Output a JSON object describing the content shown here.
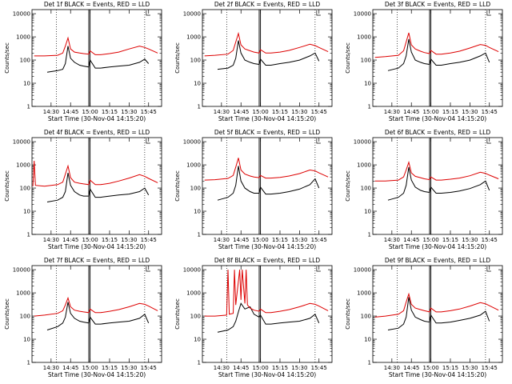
{
  "common": {
    "ylabel": "Counts/sec",
    "xlabel": "Start Time (30-Nov-04 14:15:20)",
    "xticks": [
      "14:30",
      "14:45",
      "15:00",
      "15:15",
      "15:30",
      "15:45"
    ],
    "yticks": [
      "1",
      "10",
      "100",
      "1000",
      "10000"
    ],
    "colors": {
      "events": "#000000",
      "lld": "#dd0000",
      "axes": "#000000"
    }
  },
  "chart_data": [
    {
      "type": "line",
      "title": "Det 1f BLACK = Events, RED = LLD",
      "xlim": [
        "14:15:20",
        "15:55"
      ],
      "ylim": [
        1,
        15000
      ],
      "yscale": "log",
      "xlabel": "Start Time (30-Nov-04 14:15:20)",
      "ylabel": "Counts/sec",
      "series": [
        {
          "name": "Events",
          "color": "#000000",
          "x": [
            "14:27",
            "14:35",
            "14:39",
            "14:41",
            "14:43",
            "14:45",
            "14:48",
            "14:52",
            "14:55",
            "14:59",
            "15:00",
            "15:04",
            "15:08",
            "15:15",
            "15:22",
            "15:30",
            "15:38",
            "15:42",
            "15:45"
          ],
          "y": [
            30,
            35,
            40,
            70,
            400,
            120,
            80,
            60,
            55,
            50,
            100,
            45,
            45,
            50,
            55,
            60,
            80,
            110,
            70
          ]
        },
        {
          "name": "LLD",
          "color": "#dd0000",
          "x": [
            "14:17",
            "14:25",
            "14:35",
            "14:39",
            "14:41",
            "14:43",
            "14:45",
            "14:48",
            "14:52",
            "14:55",
            "14:59",
            "15:00",
            "15:04",
            "15:08",
            "15:15",
            "15:22",
            "15:30",
            "15:38",
            "15:42",
            "15:45",
            "15:52"
          ],
          "y": [
            150,
            150,
            160,
            200,
            400,
            900,
            300,
            220,
            200,
            190,
            180,
            250,
            170,
            170,
            190,
            220,
            300,
            400,
            350,
            300,
            200
          ]
        }
      ]
    },
    {
      "type": "line",
      "title": "Det 2f BLACK = Events, RED = LLD",
      "xlim": [
        "14:15:20",
        "15:55"
      ],
      "ylim": [
        1,
        15000
      ],
      "yscale": "log",
      "xlabel": "Start Time (30-Nov-04 14:15:20)",
      "ylabel": "Counts/sec",
      "series": [
        {
          "name": "Events",
          "color": "#000000",
          "x": [
            "14:27",
            "14:35",
            "14:39",
            "14:41",
            "14:43",
            "14:45",
            "14:48",
            "14:52",
            "14:55",
            "14:59",
            "15:00",
            "15:04",
            "15:08",
            "15:15",
            "15:22",
            "15:30",
            "15:38",
            "15:42",
            "15:45"
          ],
          "y": [
            40,
            45,
            60,
            120,
            700,
            200,
            100,
            80,
            70,
            65,
            110,
            60,
            60,
            70,
            80,
            100,
            150,
            200,
            90
          ]
        },
        {
          "name": "LLD",
          "color": "#dd0000",
          "x": [
            "14:17",
            "14:25",
            "14:35",
            "14:39",
            "14:41",
            "14:43",
            "14:45",
            "14:48",
            "14:52",
            "14:55",
            "14:59",
            "15:00",
            "15:04",
            "15:08",
            "15:15",
            "15:22",
            "15:30",
            "15:38",
            "15:42",
            "15:45",
            "15:52"
          ],
          "y": [
            150,
            160,
            180,
            260,
            600,
            1400,
            450,
            300,
            250,
            220,
            200,
            280,
            200,
            200,
            220,
            260,
            350,
            480,
            420,
            350,
            230
          ]
        }
      ]
    },
    {
      "type": "line",
      "title": "Det 3f BLACK = Events, RED = LLD",
      "xlim": [
        "14:15:20",
        "15:55"
      ],
      "ylim": [
        1,
        15000
      ],
      "yscale": "log",
      "xlabel": "Start Time (30-Nov-04 14:15:20)",
      "ylabel": "Counts/sec",
      "series": [
        {
          "name": "Events",
          "color": "#000000",
          "x": [
            "14:27",
            "14:35",
            "14:39",
            "14:41",
            "14:43",
            "14:45",
            "14:48",
            "14:52",
            "14:55",
            "14:59",
            "15:00",
            "15:04",
            "15:08",
            "15:15",
            "15:22",
            "15:30",
            "15:38",
            "15:42",
            "15:45"
          ],
          "y": [
            35,
            45,
            70,
            150,
            800,
            220,
            100,
            80,
            70,
            65,
            110,
            60,
            60,
            70,
            80,
            100,
            150,
            200,
            80
          ]
        },
        {
          "name": "LLD",
          "color": "#dd0000",
          "x": [
            "14:17",
            "14:25",
            "14:35",
            "14:39",
            "14:41",
            "14:43",
            "14:45",
            "14:48",
            "14:52",
            "14:55",
            "14:59",
            "15:00",
            "15:04",
            "15:08",
            "15:15",
            "15:22",
            "15:30",
            "15:38",
            "15:42",
            "15:45",
            "15:52"
          ],
          "y": [
            130,
            140,
            160,
            250,
            600,
            1500,
            450,
            300,
            240,
            210,
            190,
            260,
            180,
            180,
            200,
            240,
            330,
            470,
            430,
            350,
            230
          ]
        }
      ]
    },
    {
      "type": "line",
      "title": "Det 4f BLACK = Events, RED = LLD",
      "xlim": [
        "14:15:20",
        "15:55"
      ],
      "ylim": [
        1,
        15000
      ],
      "yscale": "log",
      "xlabel": "Start Time (30-Nov-04 14:15:20)",
      "ylabel": "Counts/sec",
      "series": [
        {
          "name": "Events",
          "color": "#000000",
          "x": [
            "14:27",
            "14:35",
            "14:39",
            "14:41",
            "14:43",
            "14:45",
            "14:48",
            "14:52",
            "14:55",
            "14:59",
            "15:00",
            "15:04",
            "15:08",
            "15:15",
            "15:22",
            "15:30",
            "15:38",
            "15:42",
            "15:45"
          ],
          "y": [
            25,
            30,
            40,
            70,
            450,
            130,
            70,
            50,
            45,
            45,
            90,
            40,
            40,
            45,
            50,
            55,
            70,
            100,
            50
          ]
        },
        {
          "name": "LLD",
          "color": "#dd0000",
          "x": [
            "14:16",
            "14:17",
            "14:18",
            "14:25",
            "14:35",
            "14:39",
            "14:41",
            "14:43",
            "14:45",
            "14:48",
            "14:52",
            "14:55",
            "14:59",
            "15:00",
            "15:04",
            "15:08",
            "15:15",
            "15:22",
            "15:30",
            "15:38",
            "15:42",
            "15:45",
            "15:52"
          ],
          "y": [
            120,
            1500,
            130,
            120,
            140,
            180,
            400,
            900,
            280,
            180,
            160,
            150,
            140,
            220,
            140,
            140,
            160,
            200,
            270,
            380,
            320,
            260,
            170
          ]
        }
      ]
    },
    {
      "type": "line",
      "title": "Det 5f BLACK = Events, RED = LLD",
      "xlim": [
        "14:15:20",
        "15:55"
      ],
      "ylim": [
        1,
        15000
      ],
      "yscale": "log",
      "xlabel": "Start Time (30-Nov-04 14:15:20)",
      "ylabel": "Counts/sec",
      "series": [
        {
          "name": "Events",
          "color": "#000000",
          "x": [
            "14:27",
            "14:35",
            "14:39",
            "14:41",
            "14:43",
            "14:45",
            "14:48",
            "14:52",
            "14:55",
            "14:59",
            "15:00",
            "15:04",
            "15:08",
            "15:15",
            "15:22",
            "15:30",
            "15:38",
            "15:42",
            "15:45"
          ],
          "y": [
            30,
            40,
            60,
            130,
            900,
            200,
            100,
            70,
            60,
            60,
            110,
            55,
            55,
            60,
            70,
            90,
            140,
            250,
            100
          ]
        },
        {
          "name": "LLD",
          "color": "#dd0000",
          "x": [
            "14:17",
            "14:25",
            "14:35",
            "14:39",
            "14:41",
            "14:43",
            "14:45",
            "14:48",
            "14:52",
            "14:55",
            "14:59",
            "15:00",
            "15:04",
            "15:08",
            "15:15",
            "15:22",
            "15:30",
            "15:38",
            "15:42",
            "15:45",
            "15:52"
          ],
          "y": [
            220,
            230,
            260,
            350,
            800,
            2000,
            600,
            400,
            330,
            300,
            280,
            350,
            270,
            270,
            290,
            330,
            420,
            600,
            550,
            450,
            300
          ]
        }
      ]
    },
    {
      "type": "line",
      "title": "Det 6f BLACK = Events, RED = LLD",
      "xlim": [
        "14:15:20",
        "15:55"
      ],
      "ylim": [
        1,
        15000
      ],
      "yscale": "log",
      "xlabel": "Start Time (30-Nov-04 14:15:20)",
      "ylabel": "Counts/sec",
      "series": [
        {
          "name": "Events",
          "color": "#000000",
          "x": [
            "14:27",
            "14:35",
            "14:39",
            "14:41",
            "14:43",
            "14:45",
            "14:48",
            "14:52",
            "14:55",
            "14:59",
            "15:00",
            "15:04",
            "15:08",
            "15:15",
            "15:22",
            "15:30",
            "15:38",
            "15:42",
            "15:45"
          ],
          "y": [
            30,
            40,
            60,
            130,
            800,
            220,
            110,
            80,
            70,
            65,
            110,
            60,
            60,
            65,
            75,
            95,
            140,
            200,
            80
          ]
        },
        {
          "name": "LLD",
          "color": "#dd0000",
          "x": [
            "14:17",
            "14:25",
            "14:35",
            "14:39",
            "14:41",
            "14:43",
            "14:45",
            "14:48",
            "14:52",
            "14:55",
            "14:59",
            "15:00",
            "15:04",
            "15:08",
            "15:15",
            "15:22",
            "15:30",
            "15:38",
            "15:42",
            "15:45",
            "15:52"
          ],
          "y": [
            200,
            200,
            220,
            300,
            600,
            1300,
            450,
            320,
            280,
            250,
            230,
            300,
            220,
            220,
            240,
            270,
            340,
            480,
            430,
            360,
            250
          ]
        }
      ]
    },
    {
      "type": "line",
      "title": "Det 7f BLACK = Events, RED = LLD",
      "xlim": [
        "14:15:20",
        "15:55"
      ],
      "ylim": [
        1,
        15000
      ],
      "yscale": "log",
      "xlabel": "Start Time (30-Nov-04 14:15:20)",
      "ylabel": "Counts/sec",
      "series": [
        {
          "name": "Events",
          "color": "#000000",
          "x": [
            "14:27",
            "14:35",
            "14:39",
            "14:41",
            "14:43",
            "14:45",
            "14:48",
            "14:52",
            "14:55",
            "14:59",
            "15:00",
            "15:04",
            "15:08",
            "15:15",
            "15:22",
            "15:30",
            "15:38",
            "15:42",
            "15:45"
          ],
          "y": [
            25,
            35,
            50,
            90,
            400,
            130,
            80,
            60,
            55,
            50,
            90,
            45,
            45,
            50,
            55,
            60,
            80,
            120,
            50
          ]
        },
        {
          "name": "LLD",
          "color": "#dd0000",
          "x": [
            "14:17",
            "14:25",
            "14:35",
            "14:39",
            "14:41",
            "14:43",
            "14:45",
            "14:48",
            "14:52",
            "14:55",
            "14:59",
            "15:00",
            "15:04",
            "15:08",
            "15:15",
            "15:22",
            "15:30",
            "15:38",
            "15:42",
            "15:45",
            "15:52"
          ],
          "y": [
            100,
            110,
            130,
            170,
            300,
            600,
            250,
            180,
            160,
            150,
            140,
            200,
            140,
            140,
            160,
            190,
            250,
            350,
            320,
            270,
            170
          ]
        }
      ]
    },
    {
      "type": "line",
      "title": "Det 8f BLACK = Events, RED = LLD",
      "xlim": [
        "14:15:20",
        "15:55"
      ],
      "ylim": [
        1,
        15000
      ],
      "yscale": "log",
      "xlabel": "Start Time (30-Nov-04 14:15:20)",
      "ylabel": "Counts/sec",
      "series": [
        {
          "name": "Events",
          "color": "#000000",
          "x": [
            "14:27",
            "14:35",
            "14:39",
            "14:41",
            "14:43",
            "14:45",
            "14:48",
            "14:52",
            "14:55",
            "14:59",
            "15:00",
            "15:04",
            "15:08",
            "15:15",
            "15:22",
            "15:30",
            "15:38",
            "15:42",
            "15:45"
          ],
          "y": [
            20,
            25,
            35,
            60,
            150,
            350,
            200,
            250,
            120,
            90,
            110,
            45,
            45,
            50,
            55,
            60,
            80,
            120,
            50
          ]
        },
        {
          "name": "LLD",
          "color": "#dd0000",
          "x": [
            "14:17",
            "14:25",
            "14:34",
            "14:35",
            "14:36",
            "14:39",
            "14:40",
            "14:41",
            "14:44",
            "14:45",
            "14:46",
            "14:48",
            "14:49",
            "14:50",
            "14:52",
            "14:55",
            "14:59",
            "15:00",
            "15:04",
            "15:08",
            "15:15",
            "15:22",
            "15:30",
            "15:38",
            "15:42",
            "15:45",
            "15:52"
          ],
          "y": [
            100,
            100,
            110,
            10000,
            120,
            130,
            10000,
            300,
            10000,
            500,
            10000,
            350,
            10000,
            300,
            220,
            180,
            160,
            200,
            140,
            140,
            160,
            190,
            250,
            350,
            320,
            270,
            170
          ]
        }
      ]
    },
    {
      "type": "line",
      "title": "Det 9f BLACK = Events, RED = LLD",
      "xlim": [
        "14:15:20",
        "15:55"
      ],
      "ylim": [
        1,
        15000
      ],
      "yscale": "log",
      "xlabel": "Start Time (30-Nov-04 14:15:20)",
      "ylabel": "Counts/sec",
      "series": [
        {
          "name": "Events",
          "color": "#000000",
          "x": [
            "14:27",
            "14:35",
            "14:39",
            "14:41",
            "14:43",
            "14:45",
            "14:48",
            "14:52",
            "14:55",
            "14:59",
            "15:00",
            "15:04",
            "15:08",
            "15:15",
            "15:22",
            "15:30",
            "15:38",
            "15:42",
            "15:45"
          ],
          "y": [
            25,
            30,
            45,
            90,
            650,
            180,
            90,
            70,
            60,
            55,
            110,
            50,
            50,
            55,
            65,
            80,
            110,
            160,
            60
          ]
        },
        {
          "name": "LLD",
          "color": "#dd0000",
          "x": [
            "14:17",
            "14:25",
            "14:35",
            "14:39",
            "14:41",
            "14:43",
            "14:45",
            "14:48",
            "14:52",
            "14:55",
            "14:59",
            "15:00",
            "15:04",
            "15:08",
            "15:15",
            "15:22",
            "15:30",
            "15:38",
            "15:42",
            "15:45",
            "15:52"
          ],
          "y": [
            90,
            100,
            120,
            170,
            400,
            900,
            320,
            220,
            190,
            170,
            150,
            220,
            150,
            150,
            170,
            200,
            270,
            380,
            340,
            280,
            180
          ]
        }
      ]
    }
  ]
}
